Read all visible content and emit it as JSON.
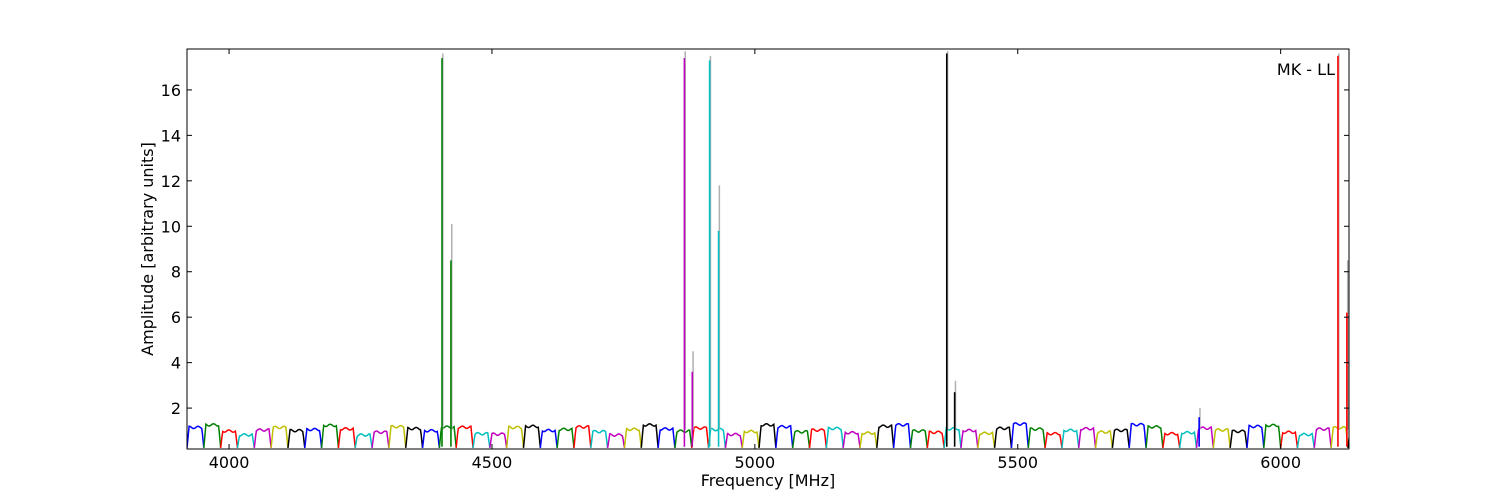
{
  "chart_data": {
    "type": "line",
    "title": "",
    "annotation": "MK - LL",
    "xlabel": "Frequency [MHz]",
    "ylabel": "Amplitude [arbitrary units]",
    "xlim": [
      3920,
      6130
    ],
    "ylim": [
      0.2,
      17.8
    ],
    "xticks": [
      4000,
      4500,
      5000,
      5500,
      6000
    ],
    "yticks": [
      2,
      4,
      6,
      8,
      10,
      12,
      14,
      16
    ],
    "grid": false,
    "legend": "none",
    "series_colors": [
      "#0000ff",
      "#008000",
      "#ff0000",
      "#00bfbf",
      "#bf00bf",
      "#bfbf00",
      "#000000"
    ],
    "shadow_color": "#b0b0b0",
    "band_width_mhz": 32,
    "band_start_mhz": 3920,
    "band_baseline": 1.05,
    "spikes": [
      {
        "x": 4405,
        "y": 17.4,
        "shadow_y": 17.6,
        "color": "#008000"
      },
      {
        "x": 4422,
        "y": 8.5,
        "shadow_y": 10.1,
        "color": "#008000"
      },
      {
        "x": 4866,
        "y": 17.4,
        "shadow_y": 17.7,
        "color": "#bf00bf"
      },
      {
        "x": 4881,
        "y": 3.6,
        "shadow_y": 4.5,
        "color": "#bf00bf"
      },
      {
        "x": 4914,
        "y": 17.3,
        "shadow_y": 17.5,
        "color": "#00bfbf"
      },
      {
        "x": 4931,
        "y": 9.8,
        "shadow_y": 11.8,
        "color": "#00bfbf"
      },
      {
        "x": 5365,
        "y": 17.6,
        "shadow_y": 17.7,
        "color": "#000000"
      },
      {
        "x": 5380,
        "y": 2.7,
        "shadow_y": 3.2,
        "color": "#000000"
      },
      {
        "x": 5845,
        "y": 1.6,
        "shadow_y": 2.0,
        "color": "#0000ff"
      },
      {
        "x": 6109,
        "y": 17.5,
        "shadow_y": 17.6,
        "color": "#ff0000"
      },
      {
        "x": 6126,
        "y": 6.2,
        "shadow_y": 8.5,
        "color": "#ff0000"
      }
    ]
  }
}
